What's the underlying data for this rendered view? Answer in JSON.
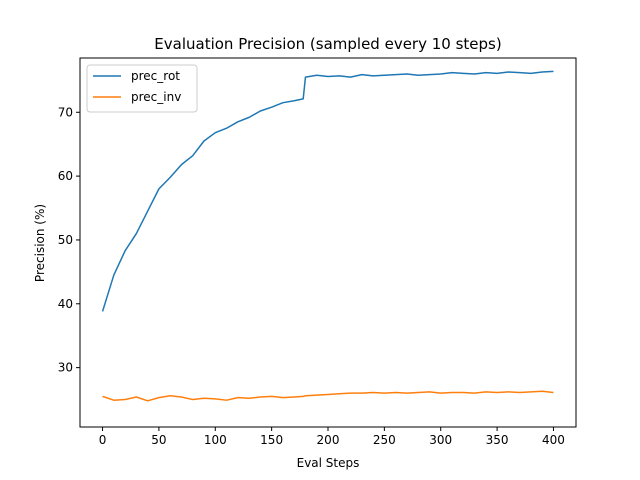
{
  "chart_data": {
    "type": "line",
    "title": "Evaluation Precision (sampled every 10 steps)",
    "xlabel": "Eval Steps",
    "ylabel": "Precision (%)",
    "xlim": [
      -20,
      420
    ],
    "ylim": [
      20.7,
      78.5
    ],
    "xticks": [
      0,
      50,
      100,
      150,
      200,
      250,
      300,
      350,
      400
    ],
    "yticks": [
      30,
      40,
      50,
      60,
      70
    ],
    "grid": false,
    "legend_position": "top-left",
    "x": [
      0,
      10,
      20,
      30,
      40,
      50,
      60,
      70,
      80,
      90,
      100,
      110,
      120,
      130,
      140,
      150,
      160,
      170,
      178,
      180,
      190,
      200,
      210,
      220,
      230,
      240,
      250,
      260,
      270,
      280,
      290,
      300,
      310,
      320,
      330,
      340,
      350,
      360,
      370,
      380,
      390,
      400
    ],
    "series": [
      {
        "name": "prec_rot",
        "color": "#1f77b4",
        "values": [
          38.8,
          44.5,
          48.3,
          51.0,
          54.5,
          58.0,
          59.8,
          61.8,
          63.2,
          65.5,
          66.8,
          67.5,
          68.5,
          69.2,
          70.2,
          70.8,
          71.5,
          71.8,
          72.1,
          75.5,
          75.8,
          75.6,
          75.7,
          75.5,
          75.9,
          75.7,
          75.8,
          75.9,
          76.0,
          75.8,
          75.9,
          76.0,
          76.2,
          76.1,
          76.0,
          76.2,
          76.1,
          76.3,
          76.2,
          76.1,
          76.3,
          76.4
        ]
      },
      {
        "name": "prec_inv",
        "color": "#ff7f0e",
        "values": [
          25.5,
          24.9,
          25.0,
          25.4,
          24.8,
          25.3,
          25.6,
          25.4,
          25.0,
          25.2,
          25.1,
          24.9,
          25.3,
          25.2,
          25.4,
          25.5,
          25.3,
          25.4,
          25.5,
          25.6,
          25.7,
          25.8,
          25.9,
          26.0,
          26.0,
          26.1,
          26.0,
          26.1,
          26.0,
          26.1,
          26.2,
          26.0,
          26.1,
          26.1,
          26.0,
          26.2,
          26.1,
          26.2,
          26.1,
          26.2,
          26.3,
          26.1
        ]
      }
    ]
  }
}
